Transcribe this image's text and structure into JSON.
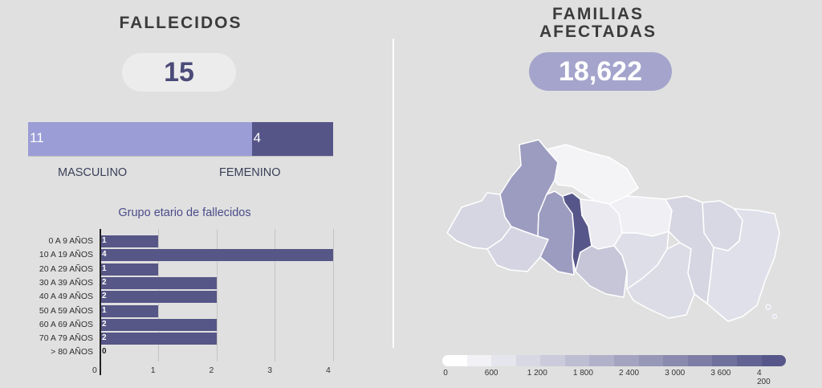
{
  "fallecidos": {
    "title": "FALLECIDOS",
    "total": "15",
    "masculino": {
      "label": "MASCULINO",
      "value": 11
    },
    "femenino": {
      "label": "FEMENINO",
      "value": 4
    }
  },
  "familias": {
    "title_line1": "FAMILIAS",
    "title_line2": "AFECTADAS",
    "total": "18,622"
  },
  "colors": {
    "masculino": "#9b9dd6",
    "femenino": "#555588",
    "age_bar": "#565687",
    "subtitle": "#4b4b8a"
  },
  "chart_data": [
    {
      "type": "bar",
      "orientation": "horizontal",
      "title": "Grupo etario de fallecidos",
      "categories": [
        "0 A 9 AÑOS",
        "10 A 19 AÑOS",
        "20 A 29 AÑOS",
        "30 A 39 AÑOS",
        "40 A 49 AÑOS",
        "50 A 59 AÑOS",
        "60 A 69 AÑOS",
        "70 A 79 AÑOS",
        "> 80 AÑOS"
      ],
      "values": [
        1,
        4,
        1,
        2,
        2,
        1,
        2,
        2,
        0
      ],
      "xlim": [
        0,
        4
      ],
      "xticks": [
        "0",
        "1",
        "2",
        "3",
        "4"
      ],
      "grid": true
    },
    {
      "type": "heatmap",
      "legend_ticks": [
        "0",
        "600",
        "1 200",
        "1 800",
        "2 400",
        "3 000",
        "3 600",
        "4 200"
      ],
      "legend_range": [
        0,
        4200
      ]
    }
  ]
}
